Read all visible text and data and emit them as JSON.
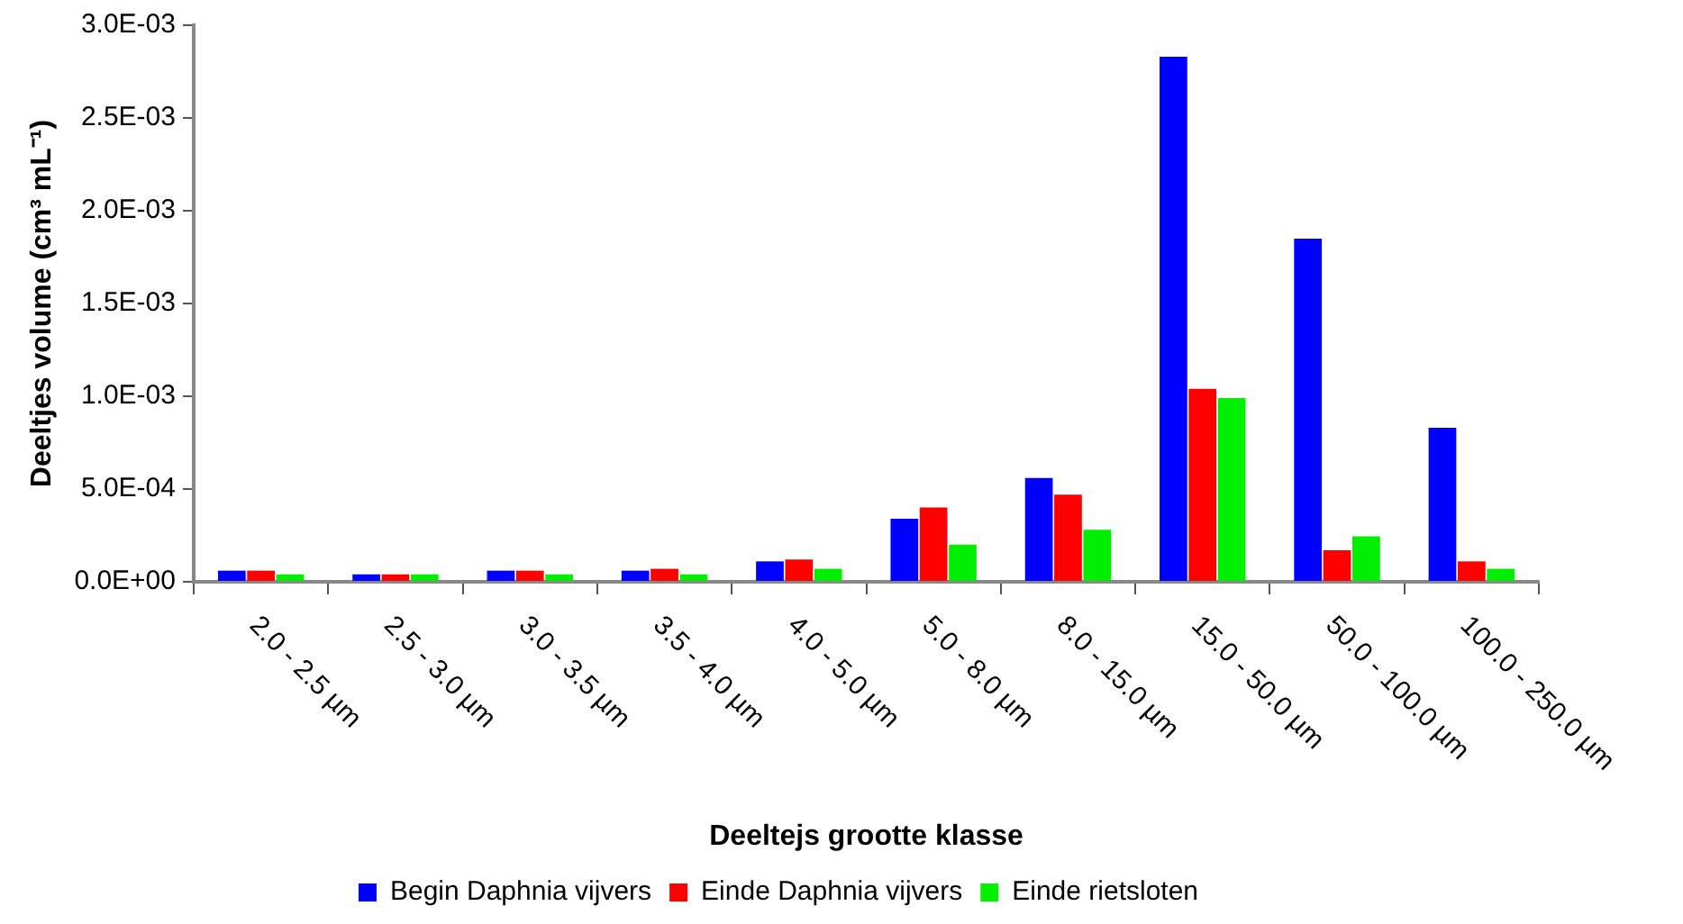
{
  "chart_data": {
    "type": "bar",
    "xlabel": "Deeltejs grootte klasse",
    "ylabel": "Deeltjes volume (cm³ mL⁻¹)",
    "categories": [
      "2.0 - 2.5 µm",
      "2.5 - 3.0 µm",
      "3.0 - 3.5 µm",
      "3.5 - 4.0 µm",
      "4.0 - 5.0 µm",
      "5.0 - 8.0 µm",
      "8.0 - 15.0 µm",
      "15.0 - 50.0 µm",
      "50.0 - 100.0 µm",
      "100.0 - 250.0 µm"
    ],
    "series": [
      {
        "name": "Begin Daphnia vijvers",
        "color": "#0000ff",
        "values": [
          6e-05,
          4e-05,
          6e-05,
          6e-05,
          0.00011,
          0.00034,
          0.00056,
          0.00283,
          0.00185,
          0.00083
        ]
      },
      {
        "name": "Einde Daphnia vijvers",
        "color": "#ff0000",
        "values": [
          6e-05,
          4e-05,
          6e-05,
          7e-05,
          0.00012,
          0.0004,
          0.00047,
          0.00104,
          0.00017,
          0.00011
        ]
      },
      {
        "name": "Einde rietsloten",
        "color": "#00ee00",
        "values": [
          4e-05,
          4e-05,
          4e-05,
          4e-05,
          7e-05,
          0.0002,
          0.00028,
          0.00099,
          0.000245,
          7e-05
        ]
      }
    ],
    "ylim": [
      0,
      0.003
    ],
    "yticks": [
      {
        "value": 0,
        "label": "0.0E+00"
      },
      {
        "value": 0.0005,
        "label": "5.0E-04"
      },
      {
        "value": 0.001,
        "label": "1.0E-03"
      },
      {
        "value": 0.0015,
        "label": "1.5E-03"
      },
      {
        "value": 0.002,
        "label": "2.0E-03"
      },
      {
        "value": 0.0025,
        "label": "2.5E-03"
      },
      {
        "value": 0.003,
        "label": "3.0E-03"
      }
    ],
    "grid": false,
    "legend": "bottom"
  }
}
